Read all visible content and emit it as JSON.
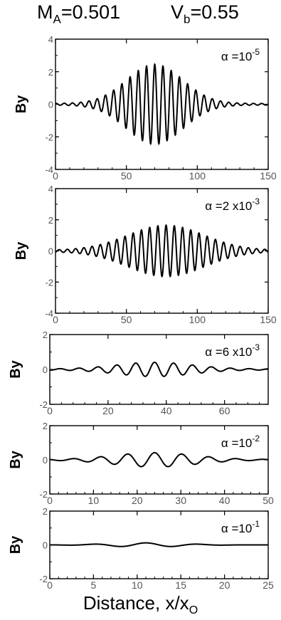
{
  "header": {
    "ma_base": "M",
    "ma_sub": "A",
    "ma_value": "=0.501",
    "vb_base": "V",
    "vb_sub": "b",
    "vb_value": "=0.55"
  },
  "xlabel": {
    "text": "Distance, x/x",
    "sub": "O"
  },
  "colors": {
    "line": "#000000",
    "axis": "#000000",
    "tick_label": "#555555"
  },
  "chart_data": [
    {
      "type": "line",
      "ylabel": "By",
      "annotation": {
        "prefix": "α =",
        "base": "10",
        "exp": "-5"
      },
      "xlim": [
        0,
        150
      ],
      "ylim": [
        -4,
        4
      ],
      "xticks": [
        0,
        50,
        100,
        150
      ],
      "yticks": [
        -4,
        -2,
        0,
        2,
        4
      ],
      "wave": {
        "amplitude_peak": 2.4,
        "center": 70,
        "width": 28,
        "period": 5.8,
        "base_amplitude": 0.05
      }
    },
    {
      "type": "line",
      "ylabel": "By",
      "annotation": {
        "prefix": "α =2 x",
        "base": "10",
        "exp": "-3"
      },
      "xlim": [
        0,
        150
      ],
      "ylim": [
        -4,
        4
      ],
      "xticks": [
        0,
        50,
        100,
        150
      ],
      "yticks": [
        -4,
        -2,
        0,
        2,
        4
      ],
      "wave": {
        "amplitude_peak": 1.6,
        "center": 78,
        "width": 38,
        "period": 5.8,
        "base_amplitude": 0.05
      }
    },
    {
      "type": "line",
      "ylabel": "By",
      "annotation": {
        "prefix": "α =6 x",
        "base": "10",
        "exp": "-3"
      },
      "xlim": [
        0,
        75
      ],
      "ylim": [
        -2,
        2
      ],
      "xticks": [
        0,
        20,
        40,
        60
      ],
      "yticks": [
        -2,
        0,
        2
      ],
      "wave": {
        "amplitude_peak": 0.38,
        "center": 36,
        "width": 18,
        "period": 6.5,
        "base_amplitude": 0.03
      }
    },
    {
      "type": "line",
      "ylabel": "By",
      "annotation": {
        "prefix": "α =",
        "base": "10",
        "exp": "-2"
      },
      "xlim": [
        0,
        50
      ],
      "ylim": [
        -2,
        2
      ],
      "xticks": [
        0,
        10,
        20,
        30,
        40,
        50
      ],
      "yticks": [
        -2,
        0,
        2
      ],
      "wave": {
        "amplitude_peak": 0.4,
        "center": 24,
        "width": 13,
        "period": 6.2,
        "base_amplitude": 0.02
      }
    },
    {
      "type": "line",
      "ylabel": "By",
      "annotation": {
        "prefix": "α =",
        "base": "10",
        "exp": "-1"
      },
      "xlim": [
        0,
        25
      ],
      "ylim": [
        -2,
        2
      ],
      "xticks": [
        0,
        5,
        10,
        15,
        20,
        25
      ],
      "yticks": [
        -2,
        0,
        2
      ],
      "wave": {
        "amplitude_peak": 0.12,
        "center": 11,
        "width": 6,
        "period": 6.0,
        "base_amplitude": 0.0
      }
    }
  ]
}
